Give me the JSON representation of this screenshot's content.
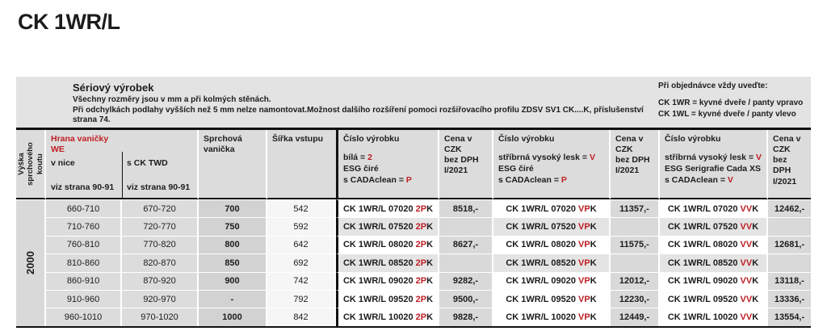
{
  "page": {
    "title": "CK 1WR/L"
  },
  "colors": {
    "accent_red": "#bf1e23",
    "info_band_gray": "#e3e3e3",
    "header_gray": "#dcdcdc",
    "price_cell_gray": "#d9d9d9",
    "rule_black": "#111111"
  },
  "info": {
    "heading": "Sériový výrobek",
    "lines": [
      "Všechny rozměry jsou v mm a při kolmých stěnách.",
      "Při odchylkách podlahy vyšších než 5 mm nelze namontovat.Možnost dalšího rozšíření pomoci rozšiřovacího profilu ZDSV SV1 CK....K, příslušenství",
      "strana 74."
    ],
    "order_note": {
      "heading": "Při objednávce vždy uveďte:",
      "lines": [
        "CK 1WR = kyvné dveře / panty vpravo",
        "CK 1WL = kyvné dveře / panty vlevo"
      ]
    }
  },
  "table": {
    "header": {
      "height_label": "Výška\nsprchového koutu",
      "tray_edge_title": "Hrana vaničky\nWE",
      "niche_label": "v nice",
      "twd_label": "s CK TWD",
      "pages_note": "viz strana 90-91",
      "tray_label": "Sprchová vanička",
      "entry_label": "Šířka vstupu",
      "article_white": {
        "title": "Číslo výrobku",
        "l1_pre": "bílá = ",
        "l1_code": "2",
        "l2": "ESG čiré",
        "l3_pre": "s CADAclean = ",
        "l3_code": "P"
      },
      "article_silver": {
        "title": "Číslo výrobku",
        "l1_pre": "stříbrná vysoký lesk = ",
        "l1_code": "V",
        "l2": "ESG čiré",
        "l3_pre": "s CADAclean = ",
        "l3_code": "P"
      },
      "article_serigraphy": {
        "title": "Číslo výrobku",
        "l1_pre": "stříbrná vysoký lesk = ",
        "l1_code": "V",
        "l2": "ESG Serigrafie Cada XS",
        "l3_pre": "s CADAclean = ",
        "l3_code": "V"
      },
      "price_header": "Cena v CZK\nbez DPH\nI/2021"
    },
    "height_value": "2000",
    "rows": [
      {
        "niche": "660-710",
        "twd": "670-720",
        "tray": "700",
        "entry": "542",
        "article1": "CK 1WR/L 07020 2PK",
        "price1": "8518,-",
        "article2": "CK 1WR/L 07020 VPK",
        "price2": "11357,-",
        "article3": "CK 1WR/L 07020 VVK",
        "price3": "12462,-",
        "shaded": false
      },
      {
        "niche": "710-760",
        "twd": "720-770",
        "tray": "750",
        "entry": "592",
        "article1": "CK 1WR/L 07520 2PK",
        "price1": "",
        "article2": "CK 1WR/L 07520 VPK",
        "price2": "",
        "article3": "CK 1WR/L 07520 VVK",
        "price3": "",
        "shaded": true
      },
      {
        "niche": "760-810",
        "twd": "770-820",
        "tray": "800",
        "entry": "642",
        "article1": "CK 1WR/L 08020 2PK",
        "price1": "8627,-",
        "article2": "CK 1WR/L 08020 VPK",
        "price2": "11575,-",
        "article3": "CK 1WR/L 08020 VVK",
        "price3": "12681,-",
        "shaded": false
      },
      {
        "niche": "810-860",
        "twd": "820-870",
        "tray": "850",
        "entry": "692",
        "article1": "CK 1WR/L 08520 2PK",
        "price1": "",
        "article2": "CK 1WR/L 08520 VPK",
        "price2": "",
        "article3": "CK 1WR/L 08520 VVK",
        "price3": "",
        "shaded": true
      },
      {
        "niche": "860-910",
        "twd": "870-920",
        "tray": "900",
        "entry": "742",
        "article1": "CK 1WR/L 09020 2PK",
        "price1": "9282,-",
        "article2": "CK 1WR/L 09020 VPK",
        "price2": "12012,-",
        "article3": "CK 1WR/L 09020 VVK",
        "price3": "13118,-",
        "shaded": false
      },
      {
        "niche": "910-960",
        "twd": "920-970",
        "tray": "-",
        "entry": "792",
        "article1": "CK 1WR/L 09520 2PK",
        "price1": "9500,-",
        "article2": "CK 1WR/L 09520 VPK",
        "price2": "12230,-",
        "article3": "CK 1WR/L 09520 VVK",
        "price3": "13336,-",
        "shaded": false
      },
      {
        "niche": "960-1010",
        "twd": "970-1020",
        "tray": "1000",
        "entry": "842",
        "article1": "CK 1WR/L 10020 2PK",
        "price1": "9828,-",
        "article2": "CK 1WR/L 10020 VPK",
        "price2": "12449,-",
        "article3": "CK 1WR/L 10020 VVK",
        "price3": "13554,-",
        "shaded": false
      }
    ]
  }
}
